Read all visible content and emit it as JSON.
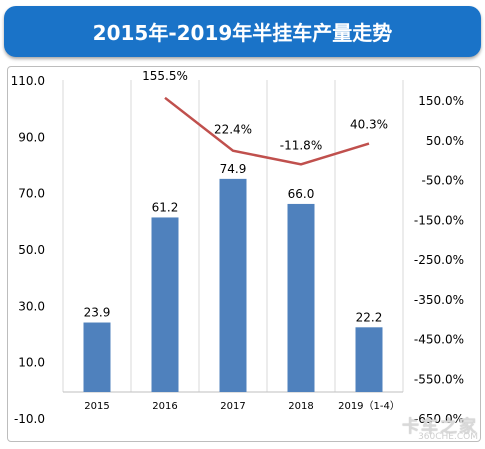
{
  "header": {
    "title": "2015年-2019年半挂车产量走势"
  },
  "chart_data": {
    "type": "bar",
    "categories": [
      "2015",
      "2016",
      "2017",
      "2018",
      "2019（1-4）"
    ],
    "series": [
      {
        "type": "bar",
        "values": [
          23.9,
          61.2,
          74.9,
          66.0,
          22.2
        ],
        "value_labels": [
          "23.9",
          "61.2",
          "74.9",
          "66.0",
          "22.2"
        ],
        "color": "#4f81bd"
      },
      {
        "type": "line",
        "axis": "right",
        "values": [
          null,
          155.5,
          22.4,
          -11.8,
          40.3
        ],
        "value_labels": [
          "",
          "155.5%",
          "22.4%",
          "-11.8%",
          "40.3%"
        ],
        "color": "#c0504d"
      }
    ],
    "y_left": {
      "ylim": [
        -10,
        110
      ],
      "ticks": [
        "110.0",
        "90.0",
        "70.0",
        "50.0",
        "30.0",
        "10.0",
        "-10.0"
      ],
      "tick_values": [
        110,
        90,
        70,
        50,
        30,
        10,
        -10
      ]
    },
    "y_right": {
      "ylim": [
        -650,
        150
      ],
      "ticks": [
        "150.0%",
        "50.0%",
        "-50.0%",
        "-150.0%",
        "-250.0%",
        "-350.0%",
        "-450.0%",
        "-550.0%",
        "-650.0%"
      ],
      "tick_values": [
        150,
        50,
        -50,
        -150,
        -250,
        -350,
        -450,
        -550,
        -650
      ]
    },
    "grid": "vertical"
  },
  "watermark": {
    "main": "卡车之家",
    "sub": "360CHE.COM"
  }
}
